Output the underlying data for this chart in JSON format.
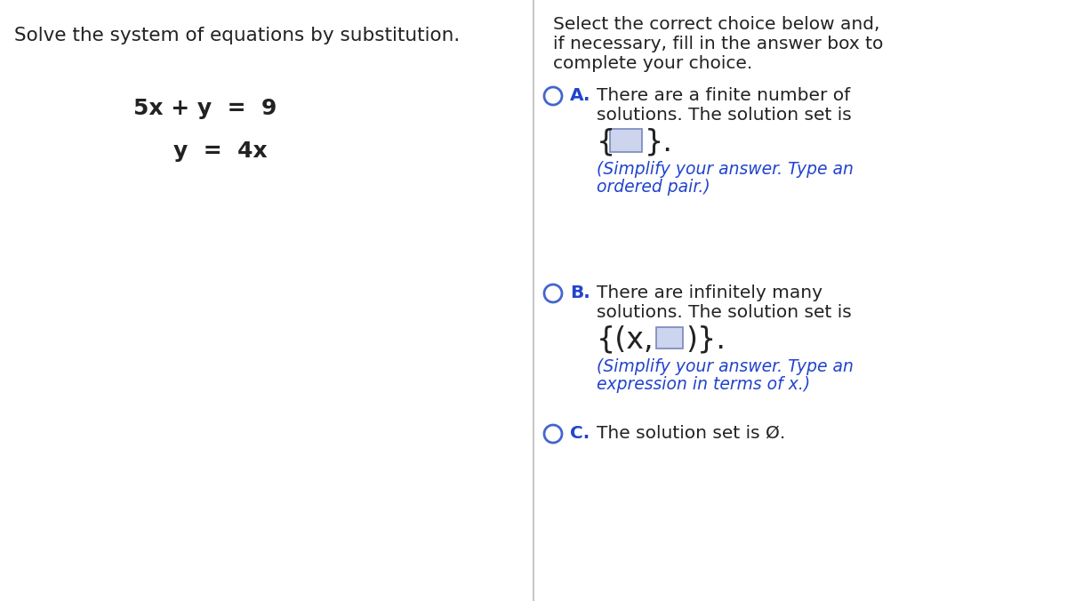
{
  "bg_color": "#ffffff",
  "left_title": "Solve the system of equations by substitution.",
  "eq1": "5x + y  =  9",
  "eq2": "y  =  4x",
  "right_header_line1": "Select the correct choice below and,",
  "right_header_line2": "if necessary, fill in the answer box to",
  "right_header_line3": "complete your choice.",
  "option_A_label": "A.",
  "option_A_text1": "There are a finite number of",
  "option_A_text2": "solutions. The solution set is",
  "option_A_hint1": "(Simplify your answer. Type an",
  "option_A_hint2": "ordered pair.)",
  "option_B_label": "B.",
  "option_B_text1": "There are infinitely many",
  "option_B_text2": "solutions. The solution set is",
  "option_B_hint1": "(Simplify your answer. Type an",
  "option_B_hint2": "expression in terms of x.)",
  "option_C_label": "C.",
  "option_C_text": "The solution set is Ø.",
  "blue_color": "#2244cc",
  "dark_color": "#222222",
  "circle_color": "#4466cc",
  "box_fill": "#ccd4ee",
  "box_edge": "#7788bb",
  "divider_color": "#bbbbbb",
  "title_fontsize": 15.5,
  "eq_fontsize": 18,
  "header_fontsize": 14.5,
  "option_text_fontsize": 14.5,
  "label_fontsize": 14.5,
  "brace_fontsize": 24,
  "hint_fontsize": 13.5
}
